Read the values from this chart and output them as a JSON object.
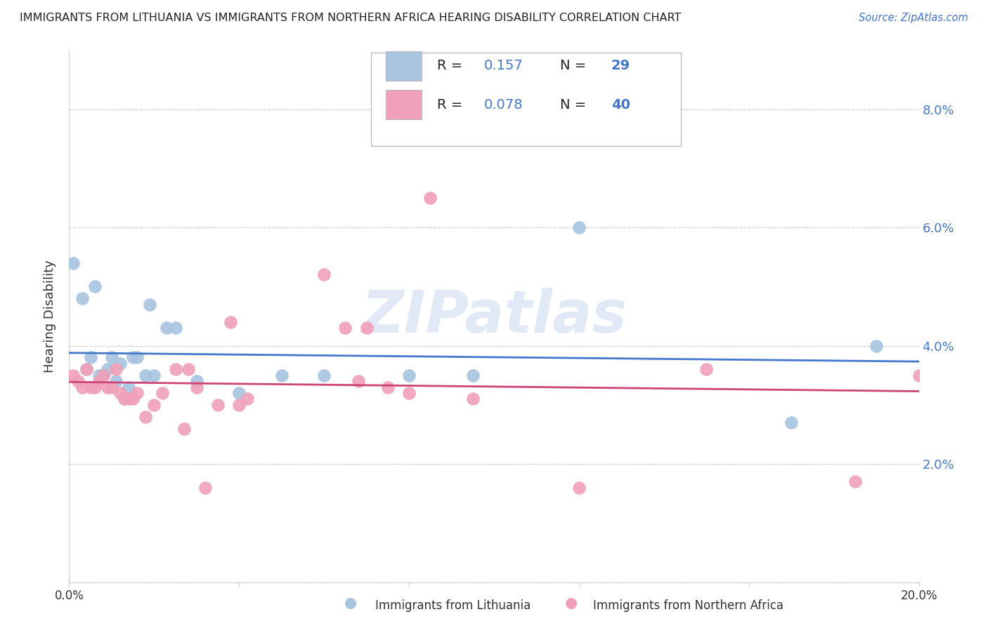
{
  "title": "IMMIGRANTS FROM LITHUANIA VS IMMIGRANTS FROM NORTHERN AFRICA HEARING DISABILITY CORRELATION CHART",
  "source": "Source: ZipAtlas.com",
  "ylabel": "Hearing Disability",
  "xlim": [
    0.0,
    0.2
  ],
  "ylim": [
    0.0,
    0.09
  ],
  "yticks": [
    0.0,
    0.02,
    0.04,
    0.06,
    0.08
  ],
  "ytick_labels": [
    "",
    "2.0%",
    "4.0%",
    "6.0%",
    "8.0%"
  ],
  "xticks": [
    0.0,
    0.04,
    0.08,
    0.12,
    0.16,
    0.2
  ],
  "xtick_labels": [
    "0.0%",
    "",
    "",
    "",
    "",
    "20.0%"
  ],
  "blue_color": "#a8c4e0",
  "pink_color": "#f0a0b8",
  "line_blue": "#4477cc",
  "line_pink": "#cc4477",
  "text_blue": "#4477cc",
  "text_dark": "#333333",
  "watermark": "ZIPatlas",
  "blue_points": [
    [
      0.001,
      0.054
    ],
    [
      0.003,
      0.048
    ],
    [
      0.004,
      0.036
    ],
    [
      0.005,
      0.038
    ],
    [
      0.006,
      0.05
    ],
    [
      0.007,
      0.035
    ],
    [
      0.008,
      0.035
    ],
    [
      0.009,
      0.036
    ],
    [
      0.01,
      0.038
    ],
    [
      0.011,
      0.034
    ],
    [
      0.012,
      0.037
    ],
    [
      0.013,
      0.031
    ],
    [
      0.014,
      0.033
    ],
    [
      0.015,
      0.038
    ],
    [
      0.016,
      0.038
    ],
    [
      0.018,
      0.035
    ],
    [
      0.019,
      0.047
    ],
    [
      0.02,
      0.035
    ],
    [
      0.023,
      0.043
    ],
    [
      0.025,
      0.043
    ],
    [
      0.03,
      0.034
    ],
    [
      0.04,
      0.032
    ],
    [
      0.05,
      0.035
    ],
    [
      0.06,
      0.035
    ],
    [
      0.08,
      0.035
    ],
    [
      0.095,
      0.035
    ],
    [
      0.12,
      0.06
    ],
    [
      0.17,
      0.027
    ],
    [
      0.19,
      0.04
    ]
  ],
  "pink_points": [
    [
      0.001,
      0.035
    ],
    [
      0.002,
      0.034
    ],
    [
      0.003,
      0.033
    ],
    [
      0.004,
      0.036
    ],
    [
      0.005,
      0.033
    ],
    [
      0.006,
      0.033
    ],
    [
      0.007,
      0.034
    ],
    [
      0.008,
      0.035
    ],
    [
      0.009,
      0.033
    ],
    [
      0.01,
      0.033
    ],
    [
      0.011,
      0.036
    ],
    [
      0.012,
      0.032
    ],
    [
      0.013,
      0.031
    ],
    [
      0.014,
      0.031
    ],
    [
      0.015,
      0.031
    ],
    [
      0.016,
      0.032
    ],
    [
      0.018,
      0.028
    ],
    [
      0.02,
      0.03
    ],
    [
      0.022,
      0.032
    ],
    [
      0.025,
      0.036
    ],
    [
      0.027,
      0.026
    ],
    [
      0.028,
      0.036
    ],
    [
      0.03,
      0.033
    ],
    [
      0.032,
      0.016
    ],
    [
      0.035,
      0.03
    ],
    [
      0.038,
      0.044
    ],
    [
      0.04,
      0.03
    ],
    [
      0.042,
      0.031
    ],
    [
      0.06,
      0.052
    ],
    [
      0.065,
      0.043
    ],
    [
      0.068,
      0.034
    ],
    [
      0.07,
      0.043
    ],
    [
      0.075,
      0.033
    ],
    [
      0.08,
      0.032
    ],
    [
      0.085,
      0.065
    ],
    [
      0.095,
      0.031
    ],
    [
      0.12,
      0.016
    ],
    [
      0.15,
      0.036
    ],
    [
      0.185,
      0.017
    ],
    [
      0.2,
      0.035
    ]
  ]
}
